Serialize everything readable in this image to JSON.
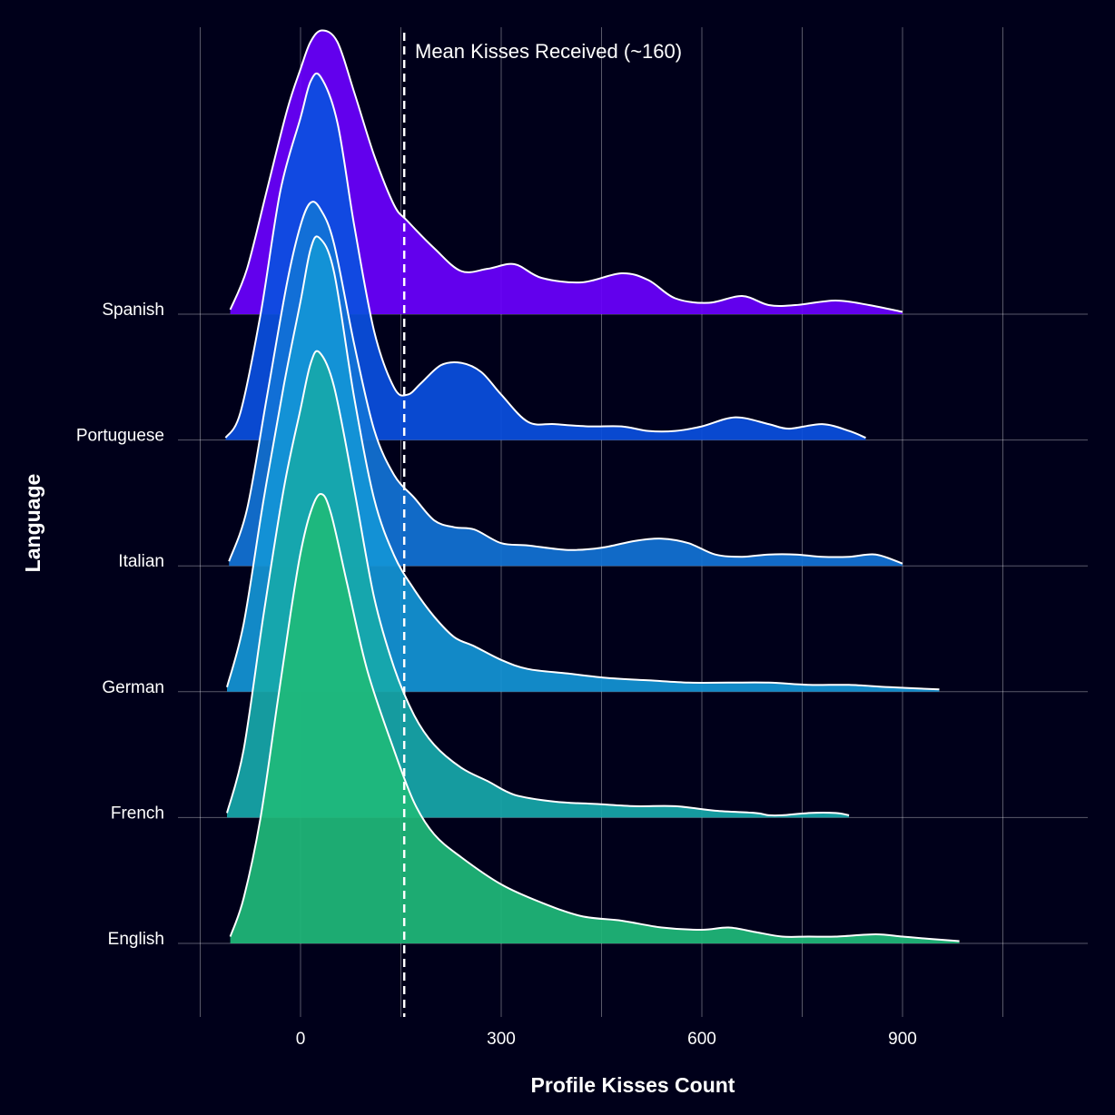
{
  "chart_data": {
    "type": "ridgeline",
    "xlabel": "Profile Kisses Count",
    "ylabel": "Language",
    "xlim": [
      -150,
      1170
    ],
    "x_ticks": [
      0,
      300,
      600,
      900
    ],
    "x_tick_labels": [
      "0",
      "300",
      "600",
      "900"
    ],
    "grid": true,
    "background": "#00001a",
    "outline_color": "#ffffff",
    "reference_line": {
      "x": 155,
      "style": "dashed",
      "label": "Mean Kisses Received (~160)"
    },
    "series": [
      {
        "name": "Spanish",
        "color": "#6a00ff",
        "x": [
          -105,
          -80,
          -50,
          -20,
          0,
          15,
          32,
          55,
          80,
          110,
          140,
          160,
          200,
          240,
          280,
          320,
          360,
          420,
          480,
          520,
          560,
          610,
          660,
          700,
          740,
          800,
          850,
          900
        ],
        "density": [
          0.02,
          0.2,
          0.55,
          0.9,
          1.08,
          1.2,
          1.25,
          1.2,
          0.98,
          0.7,
          0.48,
          0.41,
          0.29,
          0.19,
          0.2,
          0.22,
          0.16,
          0.14,
          0.18,
          0.15,
          0.07,
          0.05,
          0.08,
          0.04,
          0.04,
          0.06,
          0.04,
          0.01
        ]
      },
      {
        "name": "Portuguese",
        "color": "#0a4fe0",
        "x": [
          -112,
          -90,
          -60,
          -30,
          0,
          15,
          30,
          55,
          80,
          110,
          140,
          160,
          180,
          210,
          240,
          270,
          300,
          340,
          380,
          430,
          480,
          520,
          560,
          600,
          650,
          700,
          730,
          780,
          820,
          845
        ],
        "density": [
          0.01,
          0.12,
          0.55,
          1.1,
          1.42,
          1.58,
          1.6,
          1.4,
          0.95,
          0.48,
          0.23,
          0.2,
          0.25,
          0.33,
          0.34,
          0.3,
          0.2,
          0.08,
          0.07,
          0.06,
          0.06,
          0.04,
          0.04,
          0.06,
          0.1,
          0.07,
          0.05,
          0.07,
          0.04,
          0.01
        ]
      },
      {
        "name": "Italian",
        "color": "#1273d6",
        "x": [
          -107,
          -80,
          -50,
          -20,
          0,
          15,
          30,
          50,
          80,
          110,
          140,
          170,
          200,
          230,
          260,
          300,
          340,
          400,
          450,
          500,
          540,
          580,
          620,
          660,
          700,
          740,
          780,
          820,
          860,
          900
        ],
        "density": [
          0.02,
          0.25,
          0.75,
          1.25,
          1.5,
          1.6,
          1.57,
          1.42,
          0.98,
          0.6,
          0.4,
          0.3,
          0.2,
          0.17,
          0.16,
          0.1,
          0.09,
          0.07,
          0.08,
          0.11,
          0.12,
          0.1,
          0.05,
          0.04,
          0.05,
          0.05,
          0.04,
          0.04,
          0.05,
          0.01
        ]
      },
      {
        "name": "German",
        "color": "#1495d6",
        "x": [
          -110,
          -85,
          -55,
          -25,
          0,
          15,
          28,
          50,
          80,
          110,
          140,
          170,
          200,
          230,
          260,
          300,
          340,
          400,
          460,
          520,
          580,
          640,
          700,
          760,
          820,
          880,
          955
        ],
        "density": [
          0.02,
          0.3,
          0.85,
          1.35,
          1.72,
          1.95,
          2.0,
          1.85,
          1.3,
          0.85,
          0.6,
          0.45,
          0.33,
          0.24,
          0.2,
          0.14,
          0.1,
          0.08,
          0.06,
          0.05,
          0.04,
          0.04,
          0.04,
          0.03,
          0.03,
          0.02,
          0.01
        ]
      },
      {
        "name": "French",
        "color": "#17a8aa",
        "x": [
          -110,
          -85,
          -55,
          -25,
          0,
          15,
          28,
          50,
          80,
          110,
          140,
          170,
          200,
          240,
          280,
          320,
          380,
          440,
          500,
          560,
          620,
          680,
          700,
          720,
          760,
          800,
          820
        ],
        "density": [
          0.02,
          0.3,
          0.9,
          1.45,
          1.8,
          2.0,
          2.05,
          1.9,
          1.45,
          0.97,
          0.66,
          0.45,
          0.32,
          0.22,
          0.16,
          0.1,
          0.07,
          0.06,
          0.05,
          0.05,
          0.03,
          0.02,
          0.01,
          0.01,
          0.02,
          0.02,
          0.01
        ]
      },
      {
        "name": "English",
        "color": "#1fba79",
        "x": [
          -105,
          -85,
          -60,
          -35,
          -15,
          0,
          15,
          30,
          45,
          70,
          100,
          140,
          170,
          200,
          240,
          300,
          360,
          420,
          480,
          540,
          600,
          640,
          680,
          720,
          760,
          800,
          860,
          900,
          940,
          985
        ],
        "density": [
          0.03,
          0.2,
          0.55,
          1.05,
          1.45,
          1.72,
          1.9,
          1.98,
          1.9,
          1.58,
          1.2,
          0.85,
          0.62,
          0.48,
          0.38,
          0.26,
          0.18,
          0.12,
          0.1,
          0.07,
          0.06,
          0.07,
          0.05,
          0.03,
          0.03,
          0.03,
          0.04,
          0.03,
          0.02,
          0.01
        ]
      }
    ]
  }
}
